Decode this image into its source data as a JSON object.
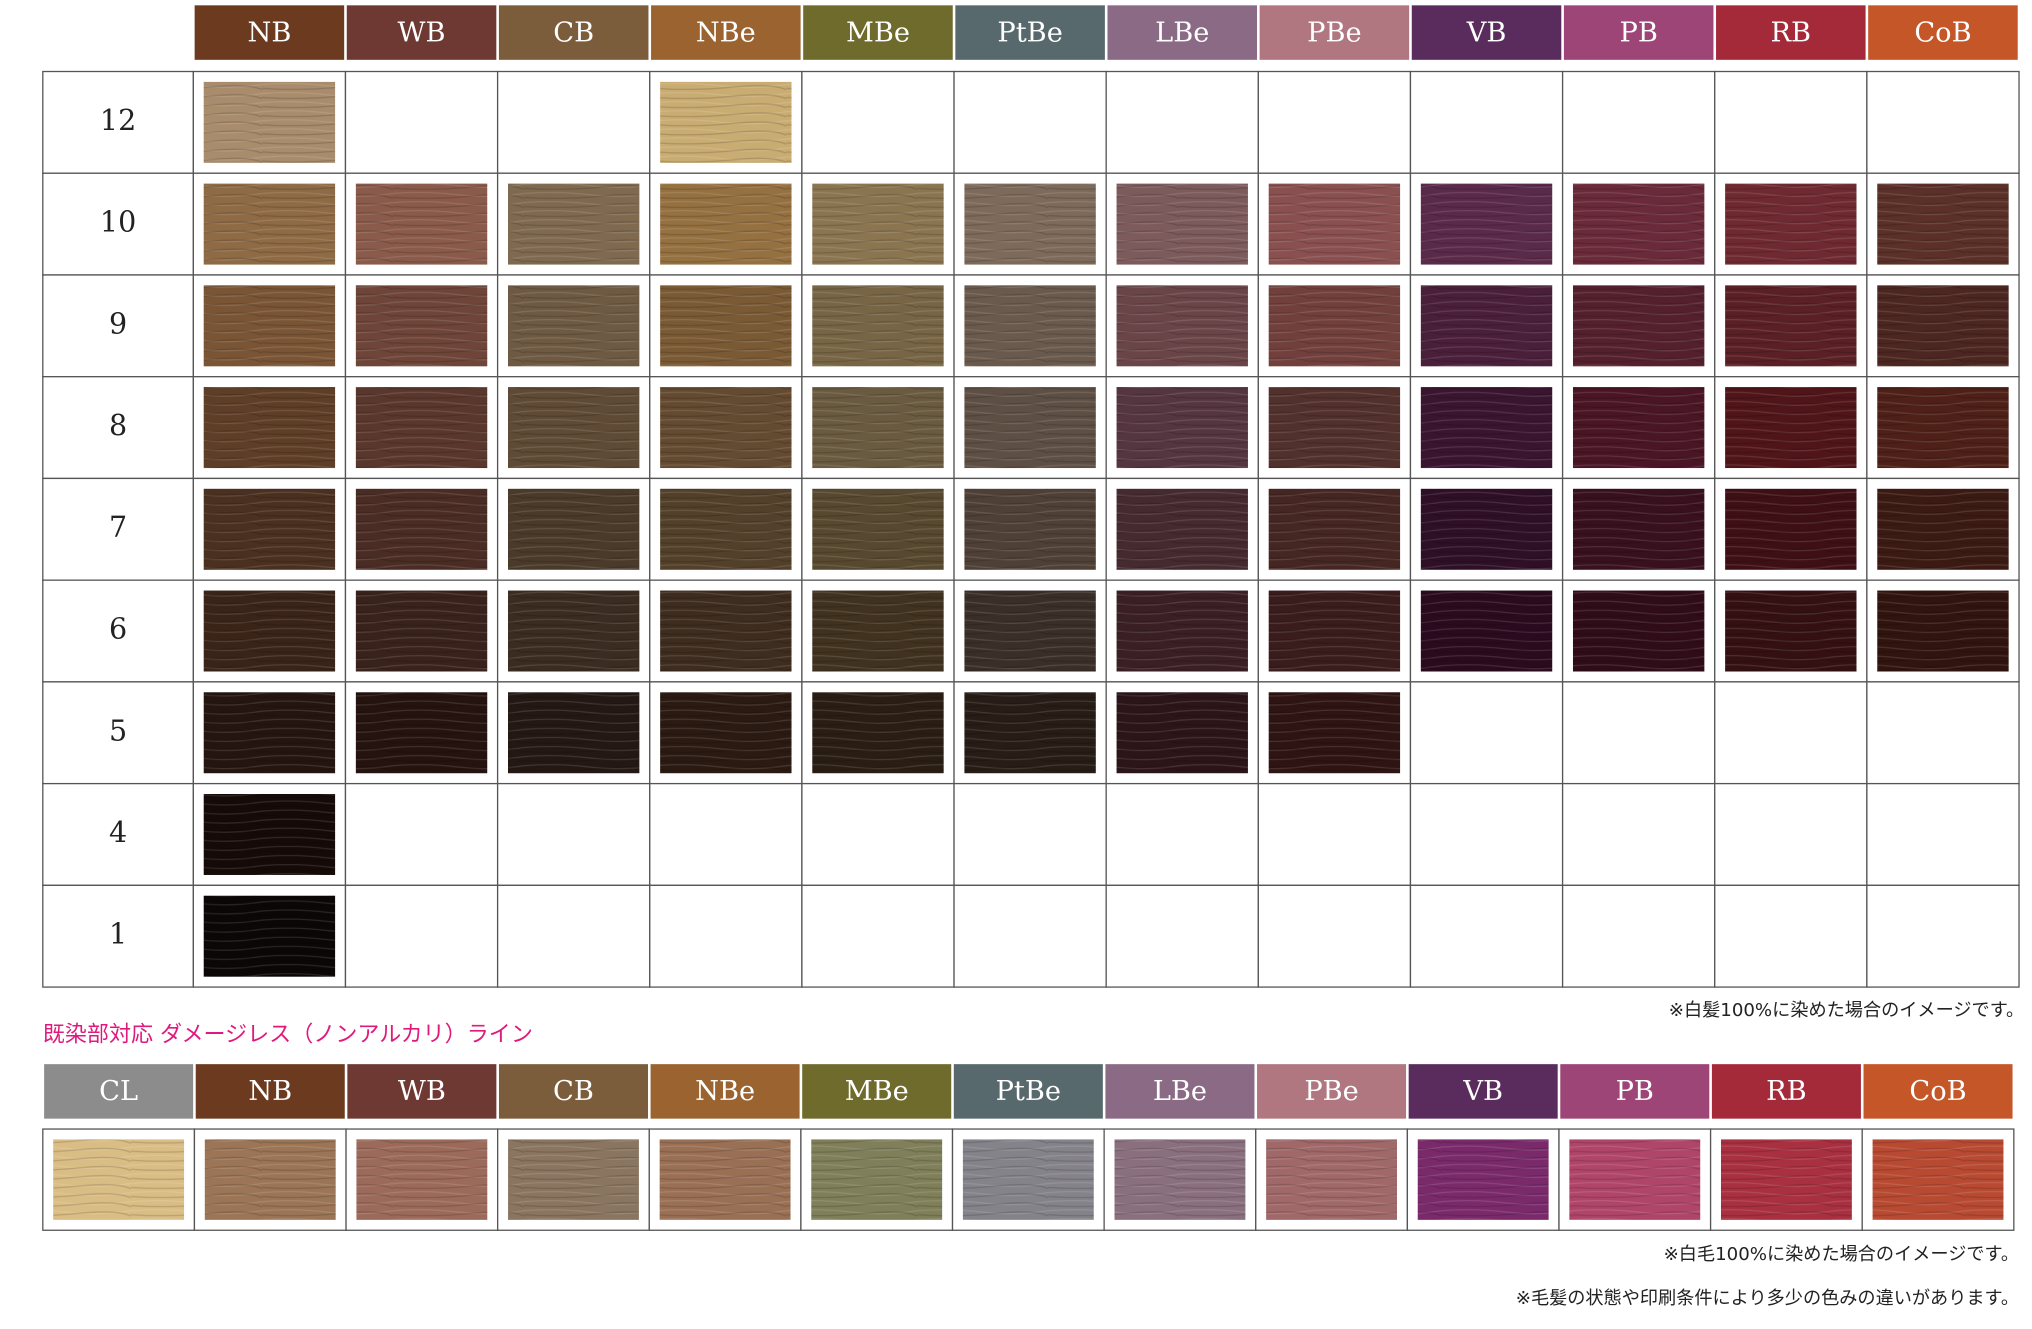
{
  "main": {
    "columns": [
      {
        "label": "NB",
        "color": "#6b3a1f"
      },
      {
        "label": "WB",
        "color": "#6e3833"
      },
      {
        "label": "CB",
        "color": "#7b5c3b"
      },
      {
        "label": "NBe",
        "color": "#9a6330"
      },
      {
        "label": "MBe",
        "color": "#6f6b2c"
      },
      {
        "label": "PtBe",
        "color": "#57696d"
      },
      {
        "label": "LBe",
        "color": "#8a6a85"
      },
      {
        "label": "PBe",
        "color": "#b07780"
      },
      {
        "label": "VB",
        "color": "#5a2c5e"
      },
      {
        "label": "PB",
        "color": "#9e4577"
      },
      {
        "label": "RB",
        "color": "#a42a3a"
      },
      {
        "label": "CoB",
        "color": "#c45628"
      }
    ],
    "rows": [
      {
        "label": "12",
        "swatches": [
          "#a88c6c",
          null,
          null,
          "#c9ac72",
          null,
          null,
          null,
          null,
          null,
          null,
          null,
          null
        ]
      },
      {
        "label": "10",
        "swatches": [
          "#8e6a45",
          "#8a5a4a",
          "#7f6a50",
          "#957040",
          "#8a7550",
          "#7d6a5a",
          "#7d5a5c",
          "#8a5050",
          "#5a2a4a",
          "#6a2a3a",
          "#6e2a30",
          "#5a3028"
        ]
      },
      {
        "label": "9",
        "swatches": [
          "#7a5535",
          "#6e4538",
          "#6e5a42",
          "#7a5a35",
          "#776545",
          "#6a5a4d",
          "#6a4548",
          "#72403c",
          "#4a1f3a",
          "#55202e",
          "#5a2025",
          "#4c2620"
        ]
      },
      {
        "label": "8",
        "swatches": [
          "#5e3e26",
          "#5a372d",
          "#5e4a35",
          "#644a30",
          "#6a5a40",
          "#5e4f44",
          "#553540",
          "#52302c",
          "#3a1530",
          "#4a1525",
          "#501518",
          "#4e2018"
        ]
      },
      {
        "label": "7",
        "swatches": [
          "#4a3020",
          "#4a2c24",
          "#4a3a2a",
          "#52402a",
          "#57492f",
          "#4e4036",
          "#452a30",
          "#452622",
          "#2e0f26",
          "#38101e",
          "#3e1015",
          "#3c1a14"
        ]
      },
      {
        "label": "6",
        "swatches": [
          "#3a2418",
          "#3a221c",
          "#3a2c20",
          "#3e2c1e",
          "#40321f",
          "#3a2f28",
          "#3a2025",
          "#3a1c1c",
          "#2a0a1e",
          "#300c18",
          "#341012",
          "#30140e"
        ]
      },
      {
        "label": "5",
        "swatches": [
          "#251510",
          "#25130f",
          "#241814",
          "#2a1a12",
          "#2a1e14",
          "#271c16",
          "#2c1519",
          "#2e1412",
          null,
          null,
          null,
          null
        ]
      },
      {
        "label": "4",
        "swatches": [
          "#150a08",
          null,
          null,
          null,
          null,
          null,
          null,
          null,
          null,
          null,
          null,
          null
        ]
      },
      {
        "label": "1",
        "swatches": [
          "#0a0706",
          null,
          null,
          null,
          null,
          null,
          null,
          null,
          null,
          null,
          null,
          null
        ]
      }
    ],
    "note": "※白髪100%に染めた場合のイメージです。"
  },
  "damageless": {
    "title": "既染部対応 ダメージレス（ノンアルカリ）ライン",
    "columns": [
      {
        "label": "CL",
        "color": "#8c8c8d"
      },
      {
        "label": "NB",
        "color": "#6b3a1f"
      },
      {
        "label": "WB",
        "color": "#6e3833"
      },
      {
        "label": "CB",
        "color": "#7b5c3b"
      },
      {
        "label": "NBe",
        "color": "#9a6330"
      },
      {
        "label": "MBe",
        "color": "#6f6b2c"
      },
      {
        "label": "PtBe",
        "color": "#57696d"
      },
      {
        "label": "LBe",
        "color": "#8a6a85"
      },
      {
        "label": "PBe",
        "color": "#b07780"
      },
      {
        "label": "VB",
        "color": "#5a2c5e"
      },
      {
        "label": "PB",
        "color": "#9e4577"
      },
      {
        "label": "RB",
        "color": "#a42a3a"
      },
      {
        "label": "CoB",
        "color": "#c45628"
      }
    ],
    "swatches": [
      "#d9bd84",
      "#9b7555",
      "#9c6a5a",
      "#8a7560",
      "#9a7055",
      "#7f7f5a",
      "#85838a",
      "#8a707e",
      "#a06868",
      "#7a2a6a",
      "#b0456a",
      "#a83040",
      "#b84a32"
    ],
    "note": "※白毛100%に染めた場合のイメージです。"
  },
  "footnote": "※毛髪の状態や印刷条件により多少の色みの違いがあります。"
}
